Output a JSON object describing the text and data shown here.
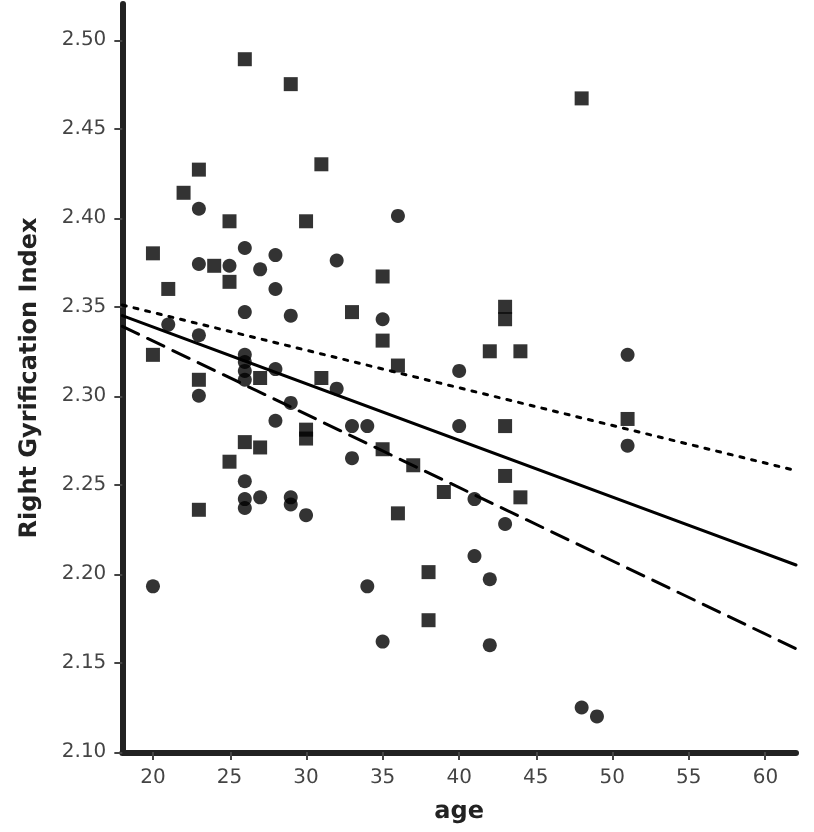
{
  "chart_data": {
    "type": "scatter",
    "xlabel": "age",
    "ylabel": "Right Gyrification Index",
    "xlim": [
      18,
      62
    ],
    "ylim": [
      2.1,
      2.52
    ],
    "xticks": [
      20,
      25,
      30,
      35,
      40,
      45,
      50,
      55,
      60
    ],
    "yticks": [
      {
        "value": 2.1,
        "label": "2.10"
      },
      {
        "value": 2.15,
        "label": "2.15"
      },
      {
        "value": 2.2,
        "label": "2.20"
      },
      {
        "value": 2.25,
        "label": "2.25"
      },
      {
        "value": 2.3,
        "label": "2.30"
      },
      {
        "value": 2.35,
        "label": "2.35"
      },
      {
        "value": 2.4,
        "label": "2.40"
      },
      {
        "value": 2.45,
        "label": "2.45"
      },
      {
        "value": 2.5,
        "label": "2.50"
      }
    ],
    "grid": false,
    "series": [
      {
        "marker": "square",
        "color": "#000000",
        "x": [
          20,
          21,
          20,
          22,
          23,
          26,
          25,
          24,
          25,
          29,
          31,
          30,
          33,
          35,
          35,
          36,
          27,
          23,
          31,
          26,
          27,
          25,
          30,
          30,
          23,
          35,
          37,
          36,
          38,
          38,
          48,
          43,
          43,
          42,
          44,
          43,
          51,
          43,
          39,
          44
        ],
        "values": [
          2.38,
          2.36,
          2.323,
          2.414,
          2.427,
          2.489,
          2.398,
          2.373,
          2.364,
          2.475,
          2.43,
          2.398,
          2.347,
          2.367,
          2.331,
          2.317,
          2.31,
          2.309,
          2.31,
          2.274,
          2.271,
          2.263,
          2.281,
          2.276,
          2.236,
          2.27,
          2.261,
          2.234,
          2.201,
          2.174,
          2.467,
          2.35,
          2.343,
          2.325,
          2.325,
          2.283,
          2.287,
          2.255,
          2.246,
          2.243
        ]
      },
      {
        "marker": "circle",
        "color": "#000000",
        "x": [
          23,
          23,
          25,
          26,
          28,
          27,
          28,
          26,
          29,
          32,
          36,
          35,
          21,
          23,
          26,
          28,
          29,
          32,
          26,
          26,
          26,
          20,
          28,
          33,
          34,
          33,
          26,
          26,
          26,
          27,
          29,
          29,
          30,
          34,
          35,
          40,
          51,
          40,
          51,
          41,
          43,
          41,
          42,
          42,
          48,
          49,
          23
        ],
        "values": [
          2.405,
          2.374,
          2.373,
          2.383,
          2.379,
          2.371,
          2.36,
          2.347,
          2.345,
          2.376,
          2.401,
          2.343,
          2.34,
          2.334,
          2.323,
          2.315,
          2.296,
          2.304,
          2.319,
          2.314,
          2.309,
          2.193,
          2.286,
          2.283,
          2.283,
          2.265,
          2.252,
          2.242,
          2.237,
          2.243,
          2.243,
          2.239,
          2.233,
          2.193,
          2.162,
          2.314,
          2.323,
          2.283,
          2.272,
          2.242,
          2.228,
          2.21,
          2.197,
          2.16,
          2.125,
          2.12,
          2.3
        ]
      },
      {
        "type": "line",
        "line_style": "solid",
        "marker": "none",
        "color": "#000000",
        "x": [
          18,
          62
        ],
        "values": [
          2.345,
          2.205
        ]
      },
      {
        "type": "line",
        "line_style": "dashed",
        "marker": "none",
        "color": "#000000",
        "x": [
          18,
          62
        ],
        "values": [
          2.339,
          2.158
        ]
      },
      {
        "type": "line",
        "line_style": "dotted",
        "marker": "none",
        "color": "#000000",
        "x": [
          18,
          62
        ],
        "values": [
          2.351,
          2.258
        ]
      }
    ]
  }
}
